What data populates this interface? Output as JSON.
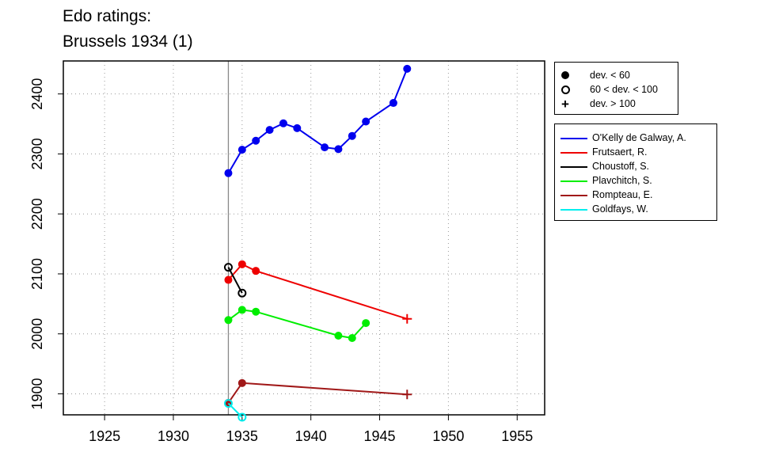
{
  "title": {
    "line1": "Edo ratings:",
    "line2": "Brussels 1934 (1)"
  },
  "chart_data": {
    "type": "line",
    "title": "Edo ratings: Brussels 1934 (1)",
    "xlabel": "",
    "ylabel": "",
    "xlim": [
      1922,
      1957
    ],
    "ylim": [
      1865,
      2455
    ],
    "x_ticks": [
      1925,
      1930,
      1935,
      1940,
      1945,
      1950,
      1955
    ],
    "y_ticks": [
      1900,
      2000,
      2100,
      2200,
      2300,
      2400
    ],
    "grid": true,
    "reference_line_x": 1934,
    "reference_line_color": "#888888",
    "series": [
      {
        "name": "O'Kelly de Galway, A.",
        "color": "#0000ee",
        "points": [
          [
            1934,
            2268,
            "dot"
          ],
          [
            1935,
            2307,
            "dot"
          ],
          [
            1936,
            2322,
            "dot"
          ],
          [
            1937,
            2340,
            "dot"
          ],
          [
            1938,
            2351,
            "dot"
          ],
          [
            1939,
            2343,
            "dot"
          ],
          [
            1941,
            2311,
            "dot"
          ],
          [
            1942,
            2308,
            "dot"
          ],
          [
            1943,
            2330,
            "dot"
          ],
          [
            1944,
            2354,
            "dot"
          ],
          [
            1946,
            2385,
            "dot"
          ],
          [
            1947,
            2442,
            "dot"
          ]
        ]
      },
      {
        "name": "Frutsaert, R.",
        "color": "#ee0000",
        "points": [
          [
            1934,
            2090,
            "dot"
          ],
          [
            1935,
            2116,
            "dot"
          ],
          [
            1936,
            2105,
            "dot"
          ],
          [
            1947,
            2025,
            "plus"
          ]
        ]
      },
      {
        "name": "Choustoff, S.",
        "color": "#000000",
        "points": [
          [
            1934,
            2111,
            "ring"
          ],
          [
            1935,
            2068,
            "ring"
          ]
        ]
      },
      {
        "name": "Plavchitch, S.",
        "color": "#00ee00",
        "points": [
          [
            1934,
            2023,
            "dot"
          ],
          [
            1935,
            2040,
            "dot"
          ],
          [
            1936,
            2037,
            "dot"
          ],
          [
            1942,
            1997,
            "dot"
          ],
          [
            1943,
            1993,
            "dot"
          ],
          [
            1944,
            2018,
            "dot"
          ]
        ]
      },
      {
        "name": "Rompteau, E.",
        "color": "#a01818",
        "points": [
          [
            1934,
            1885,
            "dot"
          ],
          [
            1935,
            1918,
            "dot"
          ],
          [
            1947,
            1899,
            "plus"
          ]
        ]
      },
      {
        "name": "Goldfays, W.",
        "color": "#00eeee",
        "points": [
          [
            1934,
            1884,
            "ring"
          ],
          [
            1935,
            1861,
            "ring"
          ]
        ]
      }
    ],
    "marker_legend": [
      {
        "symbol": "dot",
        "label": "dev. < 60"
      },
      {
        "symbol": "ring",
        "label": "60 < dev. < 100"
      },
      {
        "symbol": "plus",
        "label": "dev. > 100"
      }
    ],
    "legend_position": "right"
  }
}
